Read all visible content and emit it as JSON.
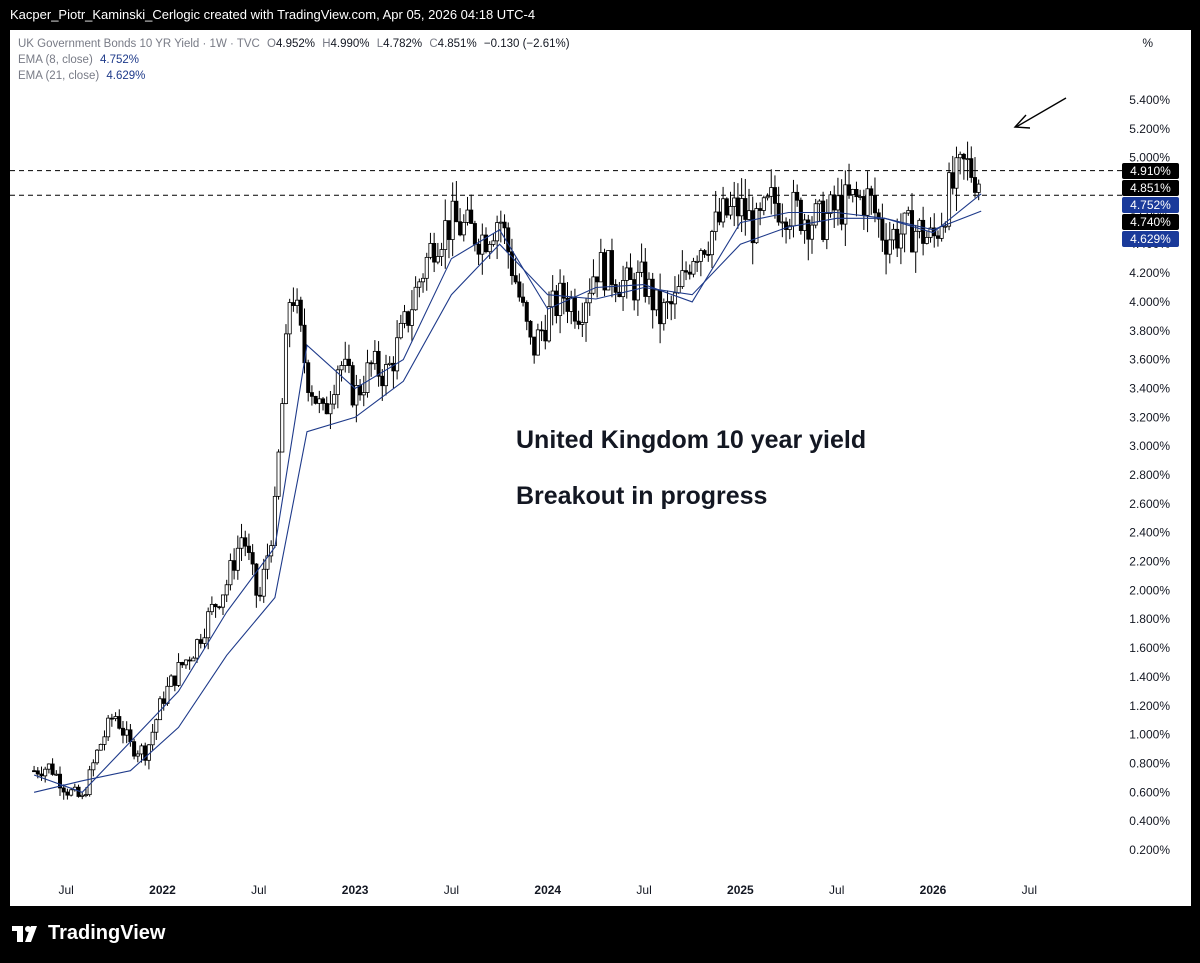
{
  "header": {
    "credit": "Kacper_Piotr_Kaminski_Cerlogic created with TradingView.com, Apr 05, 2026 04:18 UTC-4"
  },
  "legend": {
    "symbol": "UK Government Bonds 10 YR Yield · 1W · TVC",
    "o_key": "O",
    "o_val": "4.952%",
    "h_key": "H",
    "h_val": "4.990%",
    "l_key": "L",
    "l_val": "4.782%",
    "c_key": "C",
    "c_val": "4.851%",
    "change": "−0.130 (−2.61%)",
    "ema8_label": "EMA (8, close)",
    "ema8_val": "4.752%",
    "ema21_label": "EMA (21, close)",
    "ema21_val": "4.629%"
  },
  "annotation": {
    "line1": "United Kingdom 10 year yield",
    "line2": "Breakout in progress"
  },
  "axis_unit": "%",
  "price_tags": [
    {
      "label": "4.910%",
      "value": 4.91,
      "style": "dark"
    },
    {
      "label": "4.851%",
      "value": 4.851,
      "style": "dark"
    },
    {
      "label": "4.752%",
      "value": 4.752,
      "style": "blue"
    },
    {
      "label": "4.740%",
      "value": 4.74,
      "style": "dark"
    },
    {
      "label": "4.629%",
      "value": 4.629,
      "style": "blue"
    }
  ],
  "footer": {
    "brand": "TradingView"
  },
  "colors": {
    "candle": "#000000",
    "candle_up_fill": "#ffffff",
    "ema": "#1e3a8a",
    "bg": "#ffffff"
  },
  "chart_data": {
    "type": "line",
    "title": "UK Government Bonds 10 YR Yield · 1W · TVC",
    "ylabel": "%",
    "ylim": [
      0.0,
      5.55
    ],
    "y_ticks": [
      "0.200%",
      "0.400%",
      "0.600%",
      "0.800%",
      "1.000%",
      "1.200%",
      "1.400%",
      "1.600%",
      "1.800%",
      "2.000%",
      "2.200%",
      "2.400%",
      "2.600%",
      "2.800%",
      "3.000%",
      "3.200%",
      "3.400%",
      "3.600%",
      "3.800%",
      "4.000%",
      "4.200%",
      "4.400%",
      "4.600%",
      "4.800%",
      "5.000%",
      "5.200%",
      "5.400%"
    ],
    "y_tick_values": [
      0.2,
      0.4,
      0.6,
      0.8,
      1.0,
      1.2,
      1.4,
      1.6,
      1.8,
      2.0,
      2.2,
      2.4,
      2.6,
      2.8,
      3.0,
      3.2,
      3.4,
      3.6,
      3.8,
      4.0,
      4.2,
      4.4,
      4.6,
      4.8,
      5.0,
      5.2,
      5.4
    ],
    "x_ticks": [
      "Jul",
      "2022",
      "Jul",
      "2023",
      "Jul",
      "2024",
      "Jul",
      "2025",
      "Jul",
      "2026",
      "Jul"
    ],
    "x_tick_dates": [
      "2021-07",
      "2022-01",
      "2022-07",
      "2023-01",
      "2023-07",
      "2024-01",
      "2024-07",
      "2025-01",
      "2025-07",
      "2026-01",
      "2026-07"
    ],
    "horizontal_lines": [
      4.91,
      4.74
    ],
    "series": [
      {
        "name": "UK Government Bonds 10 YR Yield",
        "x": [
          "2021-05",
          "2021-06",
          "2021-07",
          "2021-08",
          "2021-09",
          "2021-10",
          "2021-11",
          "2021-12",
          "2022-01",
          "2022-02",
          "2022-03",
          "2022-04",
          "2022-05",
          "2022-06",
          "2022-07",
          "2022-08",
          "2022-09",
          "2022-10",
          "2022-11",
          "2022-12",
          "2023-01",
          "2023-02",
          "2023-03",
          "2023-04",
          "2023-05",
          "2023-06",
          "2023-07",
          "2023-08",
          "2023-09",
          "2023-10",
          "2023-11",
          "2023-12",
          "2024-01",
          "2024-02",
          "2024-03",
          "2024-04",
          "2024-05",
          "2024-06",
          "2024-07",
          "2024-08",
          "2024-09",
          "2024-10",
          "2024-11",
          "2024-12",
          "2025-01",
          "2025-02",
          "2025-03",
          "2025-04",
          "2025-05",
          "2025-06",
          "2025-07",
          "2025-08",
          "2025-09",
          "2025-10",
          "2025-11",
          "2025-12",
          "2026-01",
          "2026-02",
          "2026-03",
          "2026-04"
        ],
        "values": [
          0.75,
          0.78,
          0.62,
          0.55,
          0.9,
          1.15,
          0.92,
          0.88,
          1.25,
          1.45,
          1.6,
          1.85,
          2.05,
          2.4,
          1.9,
          2.55,
          4.15,
          3.5,
          3.2,
          3.6,
          3.35,
          3.55,
          3.5,
          3.8,
          4.15,
          4.45,
          4.55,
          4.5,
          4.45,
          4.6,
          4.15,
          3.65,
          3.9,
          4.05,
          3.95,
          4.25,
          4.2,
          4.1,
          4.15,
          3.9,
          4.0,
          4.35,
          4.45,
          4.6,
          4.65,
          4.5,
          4.7,
          4.65,
          4.6,
          4.55,
          4.65,
          4.7,
          4.72,
          4.45,
          4.48,
          4.5,
          4.42,
          4.75,
          4.95,
          4.85
        ]
      },
      {
        "name": "EMA (8, close)",
        "x": [
          "2021-05",
          "2021-08",
          "2021-11",
          "2022-02",
          "2022-05",
          "2022-08",
          "2022-10",
          "2023-01",
          "2023-04",
          "2023-07",
          "2023-10",
          "2024-01",
          "2024-04",
          "2024-07",
          "2024-10",
          "2025-01",
          "2025-04",
          "2025-07",
          "2025-10",
          "2026-01",
          "2026-04"
        ],
        "values": [
          0.72,
          0.6,
          0.95,
          1.3,
          1.85,
          2.3,
          3.7,
          3.4,
          3.6,
          4.3,
          4.5,
          3.95,
          4.1,
          4.12,
          4.0,
          4.55,
          4.62,
          4.62,
          4.58,
          4.48,
          4.75
        ]
      },
      {
        "name": "EMA (21, close)",
        "x": [
          "2021-05",
          "2021-08",
          "2021-11",
          "2022-02",
          "2022-05",
          "2022-08",
          "2022-10",
          "2023-01",
          "2023-04",
          "2023-07",
          "2023-10",
          "2024-01",
          "2024-04",
          "2024-07",
          "2024-10",
          "2025-01",
          "2025-04",
          "2025-07",
          "2025-10",
          "2026-01",
          "2026-04"
        ],
        "values": [
          0.6,
          0.68,
          0.75,
          1.05,
          1.55,
          1.95,
          3.1,
          3.2,
          3.45,
          4.05,
          4.4,
          4.05,
          4.02,
          4.1,
          4.05,
          4.4,
          4.52,
          4.58,
          4.58,
          4.5,
          4.63
        ]
      }
    ]
  }
}
